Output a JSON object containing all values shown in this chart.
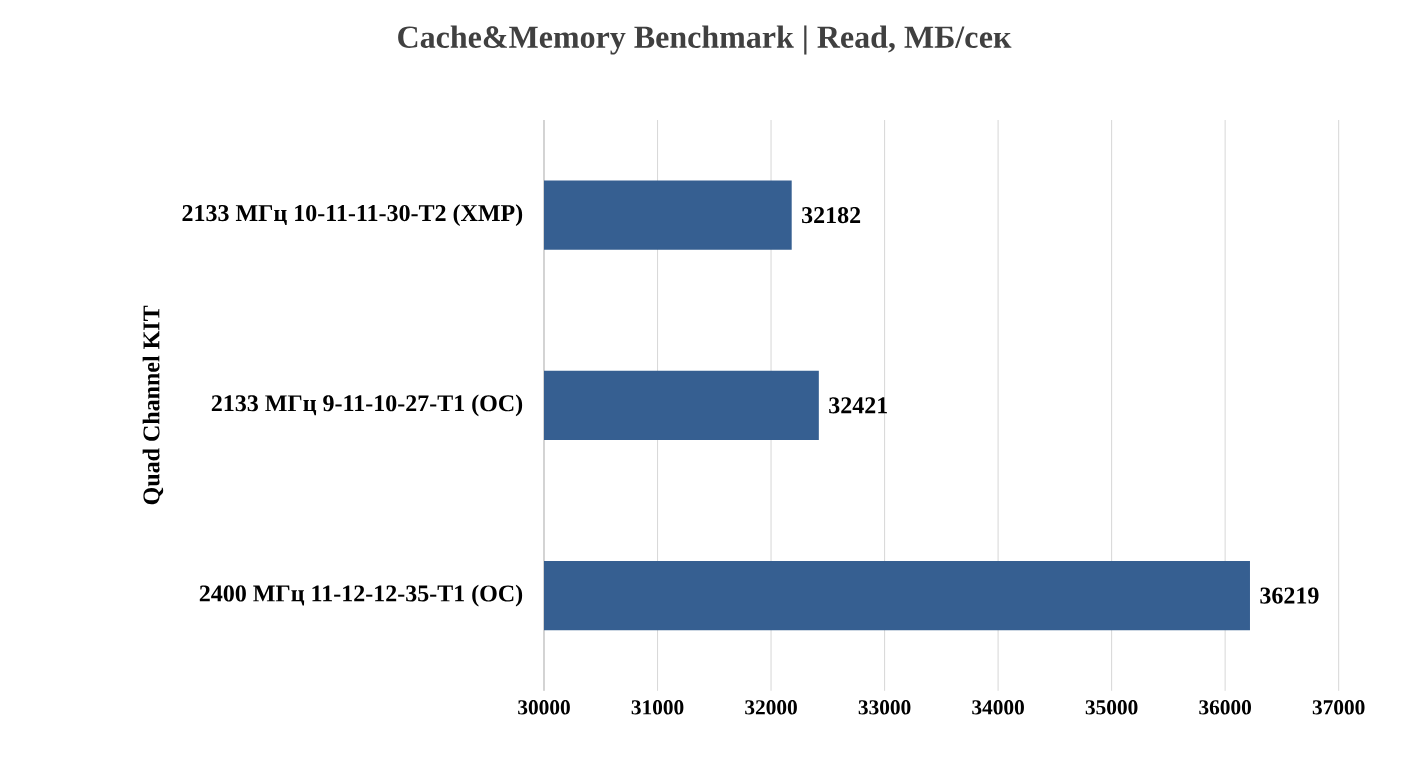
{
  "chart_data": {
    "type": "bar",
    "orientation": "horizontal",
    "title": "Cache&Memory Benchmark | Read, МБ/сек",
    "ylabel": "Quad Channel KIT",
    "categories": [
      "2133 МГц 10-11-11-30-T2 (XMP)",
      "2133 МГц 9-11-10-27-T1 (OC)",
      "2400 МГц 11-12-12-35-T1 (OC)"
    ],
    "values": [
      32182,
      32421,
      36219
    ],
    "color": "#365f91",
    "data_labels": true,
    "xlim": [
      30000,
      37000
    ],
    "xticks": [
      30000,
      31000,
      32000,
      33000,
      34000,
      35000,
      36000,
      37000
    ],
    "grid": "x"
  }
}
